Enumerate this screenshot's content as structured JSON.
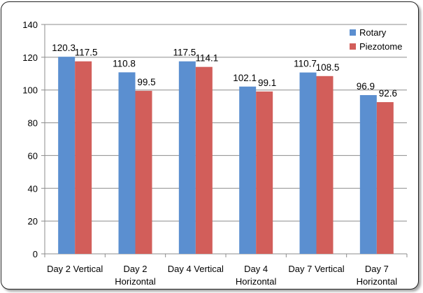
{
  "chart_data": {
    "type": "bar",
    "categories": [
      [
        "Day 2 Vertical"
      ],
      [
        "Day 2",
        "Horizontal"
      ],
      [
        "Day 4 Vertical"
      ],
      [
        "Day 4",
        "Horizontal"
      ],
      [
        "Day 7 Vertical"
      ],
      [
        "Day 7",
        "Horizontal"
      ]
    ],
    "series": [
      {
        "name": "Rotary",
        "color": "#5B8FD0",
        "values": [
          120.3,
          110.8,
          117.5,
          102.1,
          110.7,
          96.9
        ]
      },
      {
        "name": "Piezotome",
        "color": "#D25E5A",
        "values": [
          117.5,
          99.5,
          114.1,
          99.1,
          108.5,
          92.6
        ]
      }
    ],
    "ylim": [
      0,
      140
    ],
    "yticks": [
      0,
      20,
      40,
      60,
      80,
      100,
      120,
      140
    ],
    "grid": true,
    "legend_position": "top-right",
    "data_labels": true,
    "title": "",
    "xlabel": "",
    "ylabel": ""
  }
}
